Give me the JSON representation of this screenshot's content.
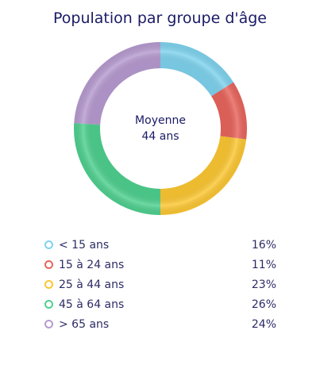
{
  "chart_data": {
    "type": "pie",
    "title": "Population par groupe d'âge",
    "center_label": "Moyenne",
    "center_value": "44 ans",
    "categories": [
      "< 15 ans",
      "15 à 24 ans",
      "25 à 44 ans",
      "45 à 64 ans",
      "> 65 ans"
    ],
    "values": [
      16,
      11,
      23,
      26,
      24
    ],
    "value_labels": [
      "16%",
      "11%",
      "23%",
      "26%",
      "24%"
    ],
    "colors": [
      "#7fd3ee",
      "#e8655d",
      "#fcc733",
      "#4fd08f",
      "#b79bd0"
    ],
    "legend": "bottom"
  }
}
